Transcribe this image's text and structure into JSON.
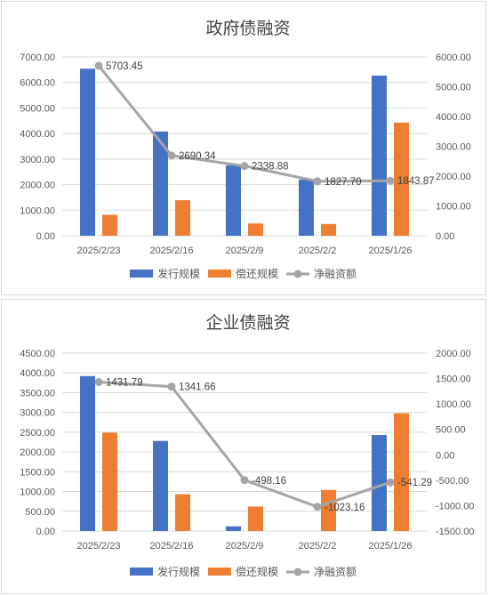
{
  "chart_data": [
    {
      "type": "bar",
      "title": "政府债融资",
      "categories": [
        "2025/2/23",
        "2025/2/16",
        "2025/2/9",
        "2025/2/2",
        "2025/1/26"
      ],
      "series": [
        {
          "name": "发行规模",
          "axis": "left",
          "values": [
            6540,
            4080,
            2760,
            2200,
            6270
          ],
          "color": "#4472c4"
        },
        {
          "name": "偿还规模",
          "axis": "left",
          "values": [
            820,
            1390,
            480,
            460,
            4430
          ],
          "color": "#ed7d31"
        },
        {
          "name": "净融资额",
          "axis": "right",
          "kind": "line",
          "values": [
            5703.45,
            2690.34,
            2338.88,
            1827.7,
            1843.87
          ],
          "labels": [
            "5703.45",
            "2690.34",
            "2338.88",
            "1827.70",
            "1843.87"
          ],
          "color": "#a5a5a5"
        }
      ],
      "y_left": {
        "range": [
          0,
          7000
        ],
        "ticks": [
          "0.00",
          "1000.00",
          "2000.00",
          "3000.00",
          "4000.00",
          "5000.00",
          "6000.00",
          "7000.00"
        ]
      },
      "y_right": {
        "range": [
          0,
          6000
        ],
        "ticks": [
          "0.00",
          "1000.00",
          "2000.00",
          "3000.00",
          "4000.00",
          "5000.00",
          "6000.00"
        ]
      },
      "grid": true,
      "legend": "bottom"
    },
    {
      "type": "bar",
      "title": "企业债融资",
      "categories": [
        "2025/2/23",
        "2025/2/16",
        "2025/2/9",
        "2025/2/2",
        "2025/1/26"
      ],
      "series": [
        {
          "name": "发行规模",
          "axis": "left",
          "values": [
            3920,
            2280,
            120,
            0,
            2430
          ],
          "color": "#4472c4"
        },
        {
          "name": "偿还规模",
          "axis": "left",
          "values": [
            2490,
            930,
            620,
            1040,
            2980
          ],
          "color": "#ed7d31"
        },
        {
          "name": "净融资额",
          "axis": "right",
          "kind": "line",
          "values": [
            1431.79,
            1341.66,
            -498.16,
            -1023.16,
            -541.29
          ],
          "labels": [
            "1431.79",
            "1341.66",
            "-498.16",
            "-1023.16",
            "-541.29"
          ],
          "color": "#a5a5a5"
        }
      ],
      "y_left": {
        "range": [
          0,
          4500
        ],
        "ticks": [
          "0.00",
          "500.00",
          "1000.00",
          "1500.00",
          "2000.00",
          "2500.00",
          "3000.00",
          "3500.00",
          "4000.00",
          "4500.00"
        ]
      },
      "y_right": {
        "range": [
          -1500,
          2000
        ],
        "ticks": [
          "-1500.00",
          "-1000.00",
          "-500.00",
          "0.00",
          "500.00",
          "1000.00",
          "1500.00",
          "2000.00"
        ]
      },
      "grid": true,
      "legend": "bottom"
    }
  ]
}
